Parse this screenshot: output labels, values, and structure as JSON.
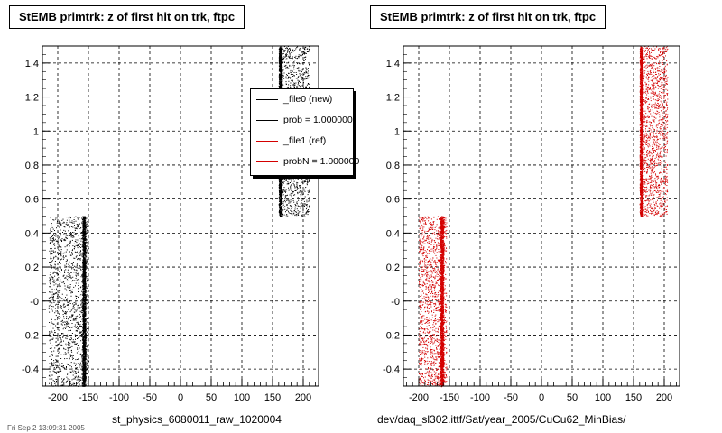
{
  "panels": [
    {
      "title": "StEMB primtrk: z of first hit on trk, ftpc",
      "xlabel": "st_physics_6080011_raw_1020004"
    },
    {
      "title": "StEMB primtrk: z of first hit on trk, ftpc",
      "xlabel": "dev/daq_sl302.ittf/Sat/year_2005/CuCu62_MinBias/"
    }
  ],
  "legend": {
    "entries": [
      {
        "label": "_file0 (new)",
        "color": "#000000"
      },
      {
        "label": "prob = 1.000000",
        "color": "#000000"
      },
      {
        "label": "_file1 (ref)",
        "color": "#d40000"
      },
      {
        "label": "probN = 1.000000",
        "color": "#d40000"
      }
    ]
  },
  "footer": "Fri Sep 2 13:09:31 2005",
  "chart_data": [
    {
      "type": "scatter",
      "title": "StEMB primtrk: z of first hit on trk, ftpc",
      "xlabel": "st_physics_6080011_raw_1020004",
      "ylabel": "",
      "xlim": [
        -225,
        225
      ],
      "ylim": [
        -0.5,
        1.5
      ],
      "x_ticks": [
        -200,
        -150,
        -100,
        -50,
        0,
        50,
        100,
        150,
        200
      ],
      "y_ticks": [
        -0.4,
        -0.2,
        0,
        0.2,
        0.4,
        0.6,
        0.8,
        1,
        1.2,
        1.4
      ],
      "y_tick_labels": [
        "-0.4",
        "-0.2",
        "-0",
        "0.2",
        "0.4",
        "0.6",
        "0.8",
        "1",
        "1.2",
        "1.4"
      ],
      "grid": true,
      "color": "#000000",
      "clusters": [
        {
          "x_range": [
            -215,
            -150
          ],
          "y_range": [
            -0.5,
            0.5
          ],
          "dense_edge_x": [
            -160,
            -155
          ]
        },
        {
          "x_range": [
            160,
            210
          ],
          "y_range": [
            0.5,
            1.5
          ],
          "dense_edge_x": [
            160,
            165
          ]
        }
      ]
    },
    {
      "type": "scatter",
      "title": "StEMB primtrk: z of first hit on trk, ftpc",
      "xlabel": "dev/daq_sl302.ittf/Sat/year_2005/CuCu62_MinBias/",
      "ylabel": "",
      "xlim": [
        -225,
        225
      ],
      "ylim": [
        -0.5,
        1.5
      ],
      "x_ticks": [
        -200,
        -150,
        -100,
        -50,
        0,
        50,
        100,
        150,
        200
      ],
      "y_ticks": [
        -0.4,
        -0.2,
        0,
        0.2,
        0.4,
        0.6,
        0.8,
        1,
        1.2,
        1.4
      ],
      "y_tick_labels": [
        "-0.4",
        "-0.2",
        "-0",
        "0.2",
        "0.4",
        "0.6",
        "0.8",
        "1",
        "1.2",
        "1.4"
      ],
      "grid": true,
      "color": "#d40000",
      "clusters": [
        {
          "x_range": [
            -200,
            -155
          ],
          "y_range": [
            -0.5,
            0.5
          ],
          "dense_edge_x": [
            -165,
            -160
          ]
        },
        {
          "x_range": [
            160,
            205
          ],
          "y_range": [
            0.5,
            1.5
          ],
          "dense_edge_x": [
            160,
            165
          ]
        }
      ]
    }
  ]
}
